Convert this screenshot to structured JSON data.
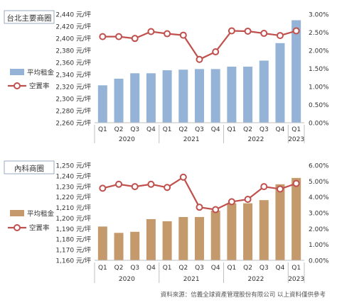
{
  "quarter_labels": [
    "Q1",
    "Q2",
    "Q3",
    "Q4",
    "Q1",
    "Q2",
    "Q3",
    "Q4",
    "Q1",
    "Q2",
    "Q3",
    "Q4",
    "Q1"
  ],
  "year_labels": [
    {
      "label": "2020",
      "from": 0,
      "to": 3
    },
    {
      "label": "2021",
      "from": 4,
      "to": 7
    },
    {
      "label": "2022",
      "from": 8,
      "to": 11
    },
    {
      "label": "2023",
      "from": 12,
      "to": 12
    }
  ],
  "source_note": "資料來源：信義全球資產管理股份有限公司 以上資料僅供參考",
  "chart_data": [
    {
      "type": "bar+line",
      "title": "台北主要商圈",
      "categories": [
        "2020 Q1",
        "2020 Q2",
        "2020 Q3",
        "2020 Q4",
        "2021 Q1",
        "2021 Q2",
        "2021 Q3",
        "2021 Q4",
        "2022 Q1",
        "2022 Q2",
        "2022 Q3",
        "2022 Q4",
        "2023 Q1"
      ],
      "series": [
        {
          "name": "平均租金",
          "type": "bar",
          "axis": "left",
          "color": "#95b3d7",
          "values": [
            2322,
            2333,
            2342,
            2342,
            2347,
            2348,
            2349,
            2349,
            2353,
            2353,
            2363,
            2392,
            2430
          ]
        },
        {
          "name": "空置率",
          "type": "line",
          "axis": "right",
          "color": "#c0504d",
          "values": [
            2.38,
            2.38,
            2.33,
            2.52,
            2.46,
            2.42,
            1.75,
            1.96,
            2.54,
            2.53,
            2.47,
            2.41,
            2.54
          ]
        }
      ],
      "y_left": {
        "min": 2260,
        "max": 2440,
        "step": 20,
        "unit": "元/坪"
      },
      "y_right": {
        "min": 0,
        "max": 3.0,
        "step": 0.5,
        "suffix": "%"
      },
      "legend_position": "left"
    },
    {
      "type": "bar+line",
      "title": "內科商圈",
      "categories": [
        "2020 Q1",
        "2020 Q2",
        "2020 Q3",
        "2020 Q4",
        "2021 Q1",
        "2021 Q2",
        "2021 Q3",
        "2021 Q4",
        "2022 Q1",
        "2022 Q2",
        "2022 Q3",
        "2022 Q4",
        "2023 Q1"
      ],
      "series": [
        {
          "name": "平均租金",
          "type": "bar",
          "axis": "left",
          "color": "#c49a6c",
          "values": [
            1192,
            1186,
            1187,
            1199,
            1197,
            1201,
            1201,
            1207,
            1214,
            1214,
            1217,
            1232,
            1238
          ]
        },
        {
          "name": "空置率",
          "type": "line",
          "axis": "right",
          "color": "#c0504d",
          "values": [
            4.55,
            4.8,
            4.65,
            4.8,
            4.6,
            5.25,
            3.35,
            3.2,
            3.7,
            3.85,
            4.65,
            4.5,
            4.85
          ]
        }
      ],
      "y_left": {
        "min": 1160,
        "max": 1250,
        "step": 10,
        "unit": "元/坪"
      },
      "y_right": {
        "min": 0,
        "max": 6.0,
        "step": 1.0,
        "suffix": "%"
      },
      "legend_position": "left"
    }
  ]
}
